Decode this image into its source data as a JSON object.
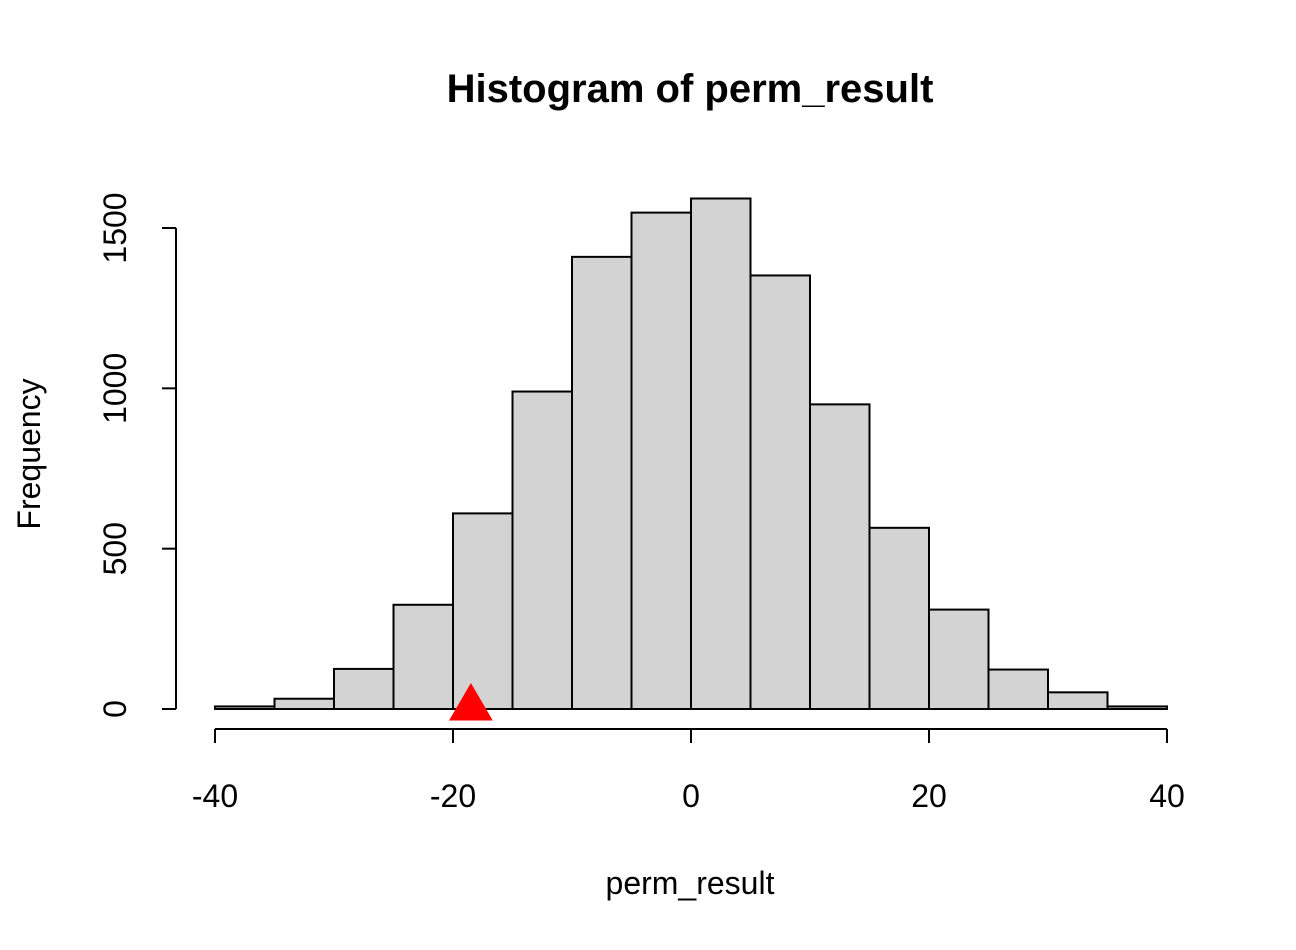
{
  "chart_data": {
    "type": "bar",
    "title": "Histogram of perm_result",
    "xlabel": "perm_result",
    "ylabel": "Frequency",
    "xlim": [
      -40,
      40
    ],
    "ylim": [
      0,
      1500
    ],
    "x_ticks": [
      "-40",
      "-20",
      "0",
      "20",
      "40"
    ],
    "y_ticks": [
      "0",
      "500",
      "1000",
      "1500"
    ],
    "bin_width": 5,
    "bins": [
      {
        "start": -40,
        "end": -35,
        "count": 8
      },
      {
        "start": -35,
        "end": -30,
        "count": 32
      },
      {
        "start": -30,
        "end": -25,
        "count": 125
      },
      {
        "start": -25,
        "end": -20,
        "count": 325
      },
      {
        "start": -20,
        "end": -15,
        "count": 610
      },
      {
        "start": -15,
        "end": -10,
        "count": 990
      },
      {
        "start": -10,
        "end": -5,
        "count": 1410
      },
      {
        "start": -5,
        "end": 0,
        "count": 1548
      },
      {
        "start": 0,
        "end": 5,
        "count": 1592
      },
      {
        "start": 5,
        "end": 10,
        "count": 1352
      },
      {
        "start": 10,
        "end": 15,
        "count": 950
      },
      {
        "start": 15,
        "end": 20,
        "count": 565
      },
      {
        "start": 20,
        "end": 25,
        "count": 310
      },
      {
        "start": 25,
        "end": 30,
        "count": 123
      },
      {
        "start": 30,
        "end": 35,
        "count": 52
      },
      {
        "start": 35,
        "end": 40,
        "count": 8
      }
    ],
    "marker": {
      "x": -18.5,
      "y": 0,
      "shape": "triangle",
      "color": "#ff0000"
    },
    "bar_fill": "#d3d3d3",
    "bar_stroke": "#000000",
    "grid": false,
    "legend": "none"
  }
}
